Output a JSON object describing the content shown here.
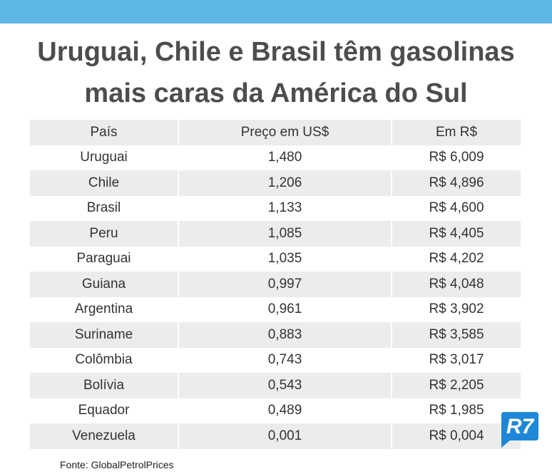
{
  "title": {
    "line1": "Uruguai, Chile e Brasil têm gasolinas",
    "line2": "mais caras da América do Sul"
  },
  "table": {
    "headers": [
      "País",
      "Preço em US$",
      "Em R$"
    ],
    "rows": [
      [
        "Uruguai",
        "1,480",
        "R$ 6,009"
      ],
      [
        "Chile",
        "1,206",
        "R$ 4,896"
      ],
      [
        "Brasil",
        "1,133",
        "R$ 4,600"
      ],
      [
        "Peru",
        "1,085",
        "R$ 4,405"
      ],
      [
        "Paraguai",
        "1,035",
        "R$ 4,202"
      ],
      [
        "Guiana",
        "0,997",
        "R$ 4,048"
      ],
      [
        "Argentina",
        "0,961",
        "R$ 3,902"
      ],
      [
        "Suriname",
        "0,883",
        "R$ 3,585"
      ],
      [
        "Colômbia",
        "0,743",
        "R$ 3,017"
      ],
      [
        "Bolívia",
        "0,543",
        "R$ 2,205"
      ],
      [
        "Equador",
        "0,489",
        "R$ 1,985"
      ],
      [
        "Venezuela",
        "0,001",
        "R$ 0,004"
      ]
    ]
  },
  "source": "Fonte: GlobalPetrolPrices",
  "logo": {
    "text": "R7",
    "icon": "r7-logo-icon",
    "color": "#1e88d8"
  },
  "colors": {
    "top_band": "#5db6e3",
    "title": "#4d4d4d",
    "row_shade": "#ececec"
  }
}
